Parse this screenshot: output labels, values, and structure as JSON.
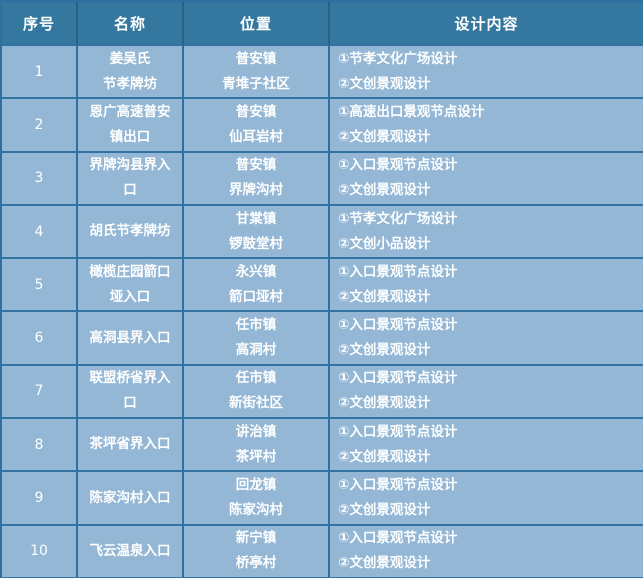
{
  "colors": {
    "header_bg": "#35789f",
    "row_bg": "#93b7d5",
    "border": "#3173a2",
    "header_border": "#2a618a",
    "text": "#ffffff"
  },
  "table": {
    "columns": [
      "序号",
      "名称",
      "位置",
      "设计内容"
    ],
    "rows": [
      {
        "no": "1",
        "name": [
          "姜吴氏",
          "节孝牌坊"
        ],
        "location": [
          "普安镇",
          "青堆子社区"
        ],
        "design": [
          "①节孝文化广场设计",
          "②文创景观设计"
        ]
      },
      {
        "no": "2",
        "name": [
          "恩广高速普安",
          "镇出口"
        ],
        "location": [
          "普安镇",
          "仙耳岩村"
        ],
        "design": [
          "①高速出口景观节点设计",
          "②文创景观设计"
        ]
      },
      {
        "no": "3",
        "name": [
          "界牌沟县界入",
          "口"
        ],
        "location": [
          "普安镇",
          "界牌沟村"
        ],
        "design": [
          "①入口景观节点设计",
          "②文创景观设计"
        ]
      },
      {
        "no": "4",
        "name": [
          "胡氏节孝牌坊"
        ],
        "location": [
          "甘棠镇",
          "锣鼓堂村"
        ],
        "design": [
          "①节孝文化广场设计",
          "②文创小品设计"
        ]
      },
      {
        "no": "5",
        "name": [
          "橄榄庄园箭口",
          "垭入口"
        ],
        "location": [
          "永兴镇",
          "箭口垭村"
        ],
        "design": [
          "①入口景观节点设计",
          "②文创景观设计"
        ]
      },
      {
        "no": "6",
        "name": [
          "高洞县界入口"
        ],
        "location": [
          "任市镇",
          "高洞村"
        ],
        "design": [
          "①入口景观节点设计",
          "②文创景观设计"
        ]
      },
      {
        "no": "7",
        "name": [
          "联盟桥省界入",
          "口"
        ],
        "location": [
          "任市镇",
          "新街社区"
        ],
        "design": [
          "①入口景观节点设计",
          "②文创景观设计"
        ]
      },
      {
        "no": "8",
        "name": [
          "茶坪省界入口"
        ],
        "location": [
          "讲治镇",
          "茶坪村"
        ],
        "design": [
          "①入口景观节点设计",
          "②文创景观设计"
        ]
      },
      {
        "no": "9",
        "name": [
          "陈家沟村入口"
        ],
        "location": [
          "回龙镇",
          "陈家沟村"
        ],
        "design": [
          "①入口景观节点设计",
          "②文创景观设计"
        ]
      },
      {
        "no": "10",
        "name": [
          "飞云温泉入口"
        ],
        "location": [
          "新宁镇",
          "桥亭村"
        ],
        "design": [
          "①入口景观节点设计",
          "②文创景观设计"
        ]
      }
    ]
  }
}
